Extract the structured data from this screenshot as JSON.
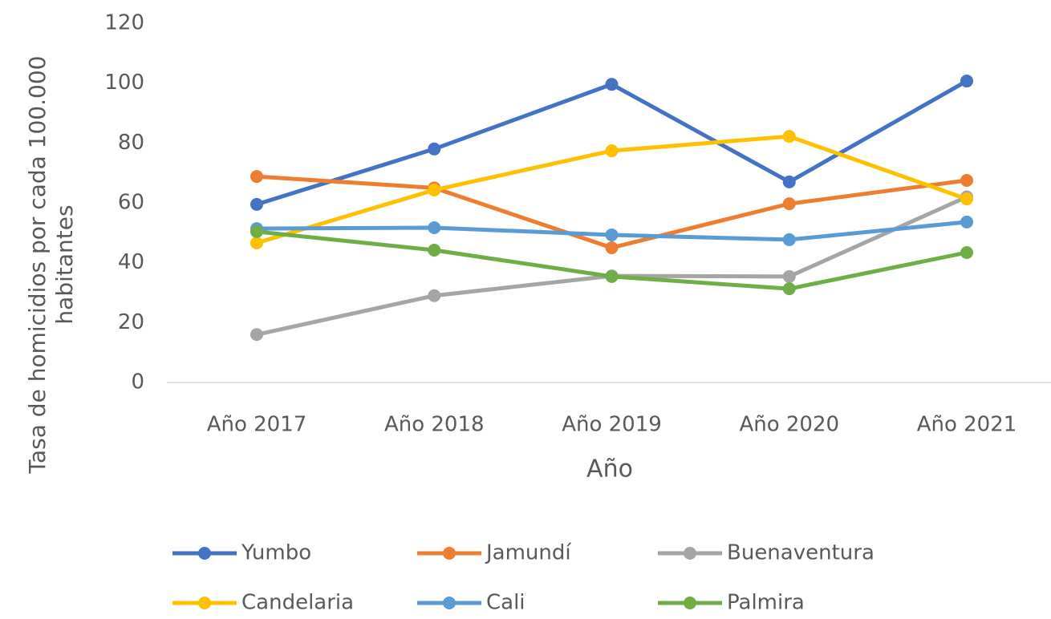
{
  "chart_data": {
    "type": "line",
    "y_label": [
      "Tasa de homicidios por cada 100.000",
      "habitantes"
    ],
    "x_label": "Año",
    "categories": [
      "Año 2017",
      "Año 2018",
      "Año 2019",
      "Año 2020",
      "Año 2021"
    ],
    "series": [
      {
        "name": "Yumbo",
        "color": "#4472c4",
        "values": [
          59.5,
          78,
          99.6,
          67,
          100.7
        ]
      },
      {
        "name": "Jamundí",
        "color": "#ed7d31",
        "values": [
          68.8,
          65,
          45,
          59.7,
          67.5
        ]
      },
      {
        "name": "Buenaventura",
        "color": "#a5a5a5",
        "values": [
          16,
          29,
          35.6,
          35.4,
          62
        ]
      },
      {
        "name": "Candelaria",
        "color": "#ffc000",
        "values": [
          46.6,
          64.3,
          77.4,
          82.2,
          61.3
        ]
      },
      {
        "name": "Cali",
        "color": "#5b9bd5",
        "values": [
          51.4,
          51.7,
          49.3,
          47.7,
          53.6
        ]
      },
      {
        "name": "Palmira",
        "color": "#70ad47",
        "values": [
          50.4,
          44.2,
          35.4,
          31.3,
          43.4
        ]
      }
    ],
    "ylim": [
      0,
      120
    ],
    "yticks": [
      0,
      20,
      40,
      60,
      80,
      100,
      120
    ],
    "grid": false,
    "legend": "bottom"
  }
}
